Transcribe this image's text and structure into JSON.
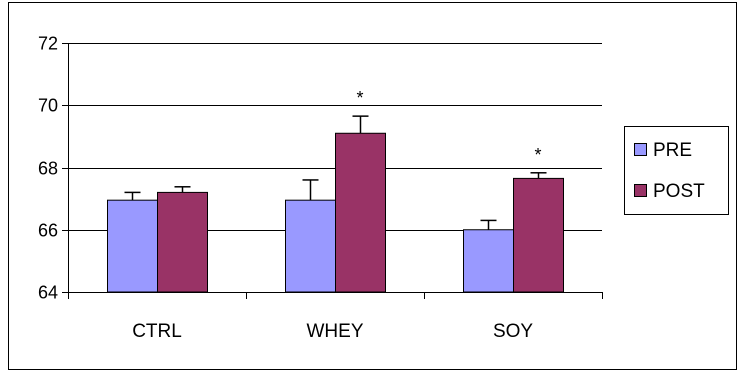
{
  "chart_data": {
    "type": "bar",
    "categories": [
      "CTRL",
      "WHEY",
      "SOY"
    ],
    "series": [
      {
        "name": "PRE",
        "values": [
          66.95,
          66.95,
          66.0
        ],
        "errors": [
          0.25,
          0.65,
          0.3
        ],
        "color": "#9999ff"
      },
      {
        "name": "POST",
        "values": [
          67.2,
          69.1,
          67.65
        ],
        "errors": [
          0.18,
          0.55,
          0.18
        ],
        "color": "#993366"
      }
    ],
    "ylim": [
      64,
      72
    ],
    "yticks": [
      "64",
      "66",
      "68",
      "70",
      "72"
    ],
    "grid": true,
    "legend_position": "right",
    "annotations": [
      {
        "category": "WHEY",
        "series": "POST",
        "text": "*"
      },
      {
        "category": "SOY",
        "series": "POST",
        "text": "*"
      }
    ]
  }
}
